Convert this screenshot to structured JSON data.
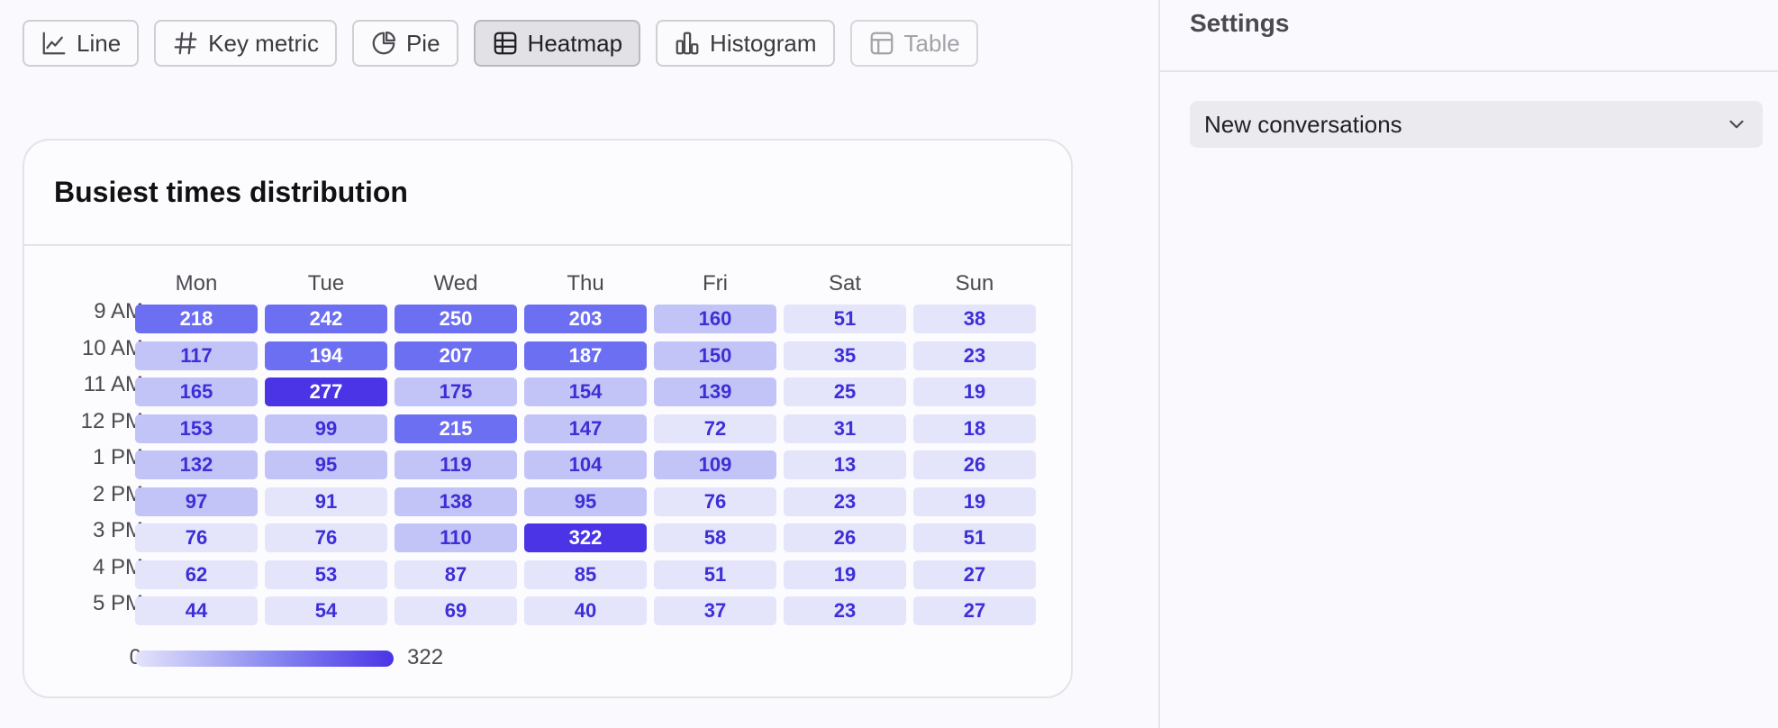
{
  "toolbar": {
    "buttons": [
      {
        "label": "Line",
        "icon": "line-chart-icon",
        "state": "normal"
      },
      {
        "label": "Key metric",
        "icon": "hash-icon",
        "state": "normal"
      },
      {
        "label": "Pie",
        "icon": "pie-chart-icon",
        "state": "normal"
      },
      {
        "label": "Heatmap",
        "icon": "grid-icon",
        "state": "active"
      },
      {
        "label": "Histogram",
        "icon": "bar-chart-icon",
        "state": "normal"
      },
      {
        "label": "Table",
        "icon": "table-icon",
        "state": "disabled"
      }
    ]
  },
  "card": {
    "title": "Busiest times distribution"
  },
  "chart_data": {
    "type": "heatmap",
    "title": "Busiest times distribution",
    "x": [
      "Mon",
      "Tue",
      "Wed",
      "Thu",
      "Fri",
      "Sat",
      "Sun"
    ],
    "y": [
      "9 AM",
      "10 AM",
      "11 AM",
      "12 PM",
      "1 PM",
      "2 PM",
      "3 PM",
      "4 PM",
      "5 PM"
    ],
    "values": [
      [
        218,
        242,
        250,
        203,
        160,
        51,
        38
      ],
      [
        117,
        194,
        207,
        187,
        150,
        35,
        23
      ],
      [
        165,
        277,
        175,
        154,
        139,
        25,
        19
      ],
      [
        153,
        99,
        215,
        147,
        72,
        31,
        18
      ],
      [
        132,
        95,
        119,
        104,
        109,
        13,
        26
      ],
      [
        97,
        91,
        138,
        95,
        76,
        23,
        19
      ],
      [
        76,
        76,
        110,
        322,
        58,
        26,
        51
      ],
      [
        62,
        53,
        87,
        85,
        51,
        19,
        27
      ],
      [
        44,
        54,
        69,
        40,
        37,
        23,
        27
      ]
    ],
    "legend": {
      "min": "0",
      "max": "322"
    },
    "colors": {
      "low": "#e4e4fb",
      "mid": "#c2c3f7",
      "high": "#6c6ff2",
      "max": "#4a34e6",
      "text_dark": "#3d2fd6",
      "text_light": "#ffffff"
    }
  },
  "settings": {
    "title": "Settings",
    "metric_select": {
      "value": "New conversations"
    }
  }
}
